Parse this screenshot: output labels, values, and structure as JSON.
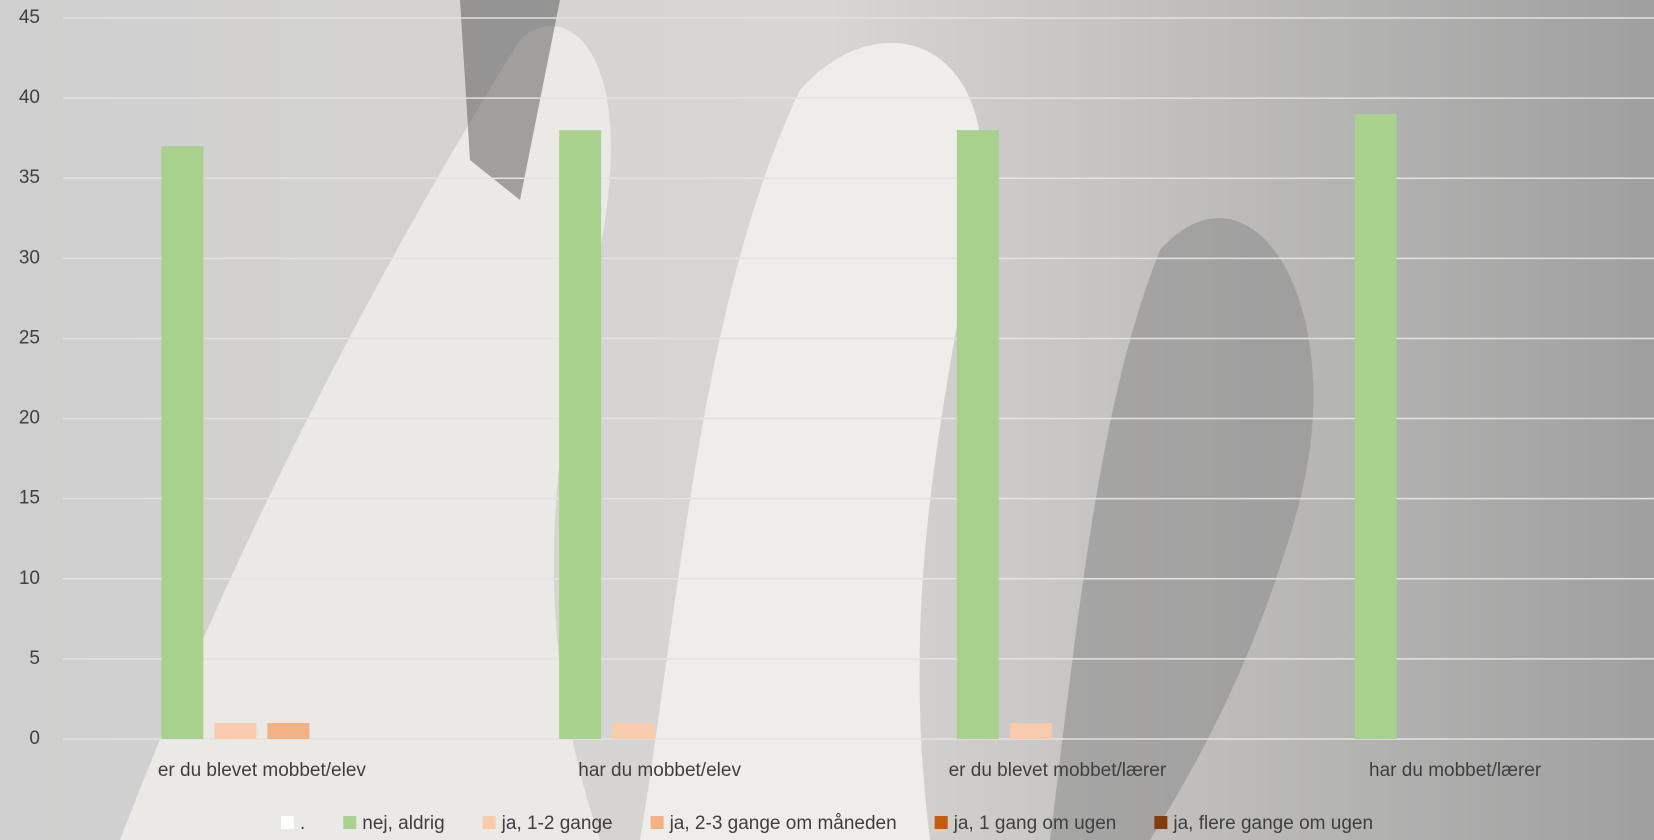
{
  "chart_data": {
    "type": "bar",
    "categories": [
      "er du blevet mobbet/elev",
      "har du mobbet/elev",
      "er du blevet mobbet/lærer",
      "har du mobbet/lærer"
    ],
    "series": [
      {
        "name": ".",
        "color": "#ffffff",
        "values": [
          0,
          0,
          0,
          0
        ]
      },
      {
        "name": "nej, aldrig",
        "color": "#a9d18e",
        "values": [
          37,
          38,
          38,
          39
        ]
      },
      {
        "name": "ja, 1-2 gange",
        "color": "#f8cbad",
        "values": [
          1,
          1,
          1,
          0
        ]
      },
      {
        "name": "ja, 2-3 gange om måneden",
        "color": "#f4b183",
        "values": [
          1,
          0,
          0,
          0
        ]
      },
      {
        "name": "ja, 1 gang om ugen",
        "color": "#c55a11",
        "values": [
          0,
          0,
          0,
          0
        ]
      },
      {
        "name": "ja, flere gange om ugen",
        "color": "#843c0c",
        "values": [
          0,
          0,
          0,
          0
        ]
      }
    ],
    "ylim": [
      0,
      45
    ],
    "yticks": [
      0,
      5,
      10,
      15,
      20,
      25,
      30,
      35,
      40,
      45
    ],
    "grid": true,
    "legend": "bottom"
  }
}
